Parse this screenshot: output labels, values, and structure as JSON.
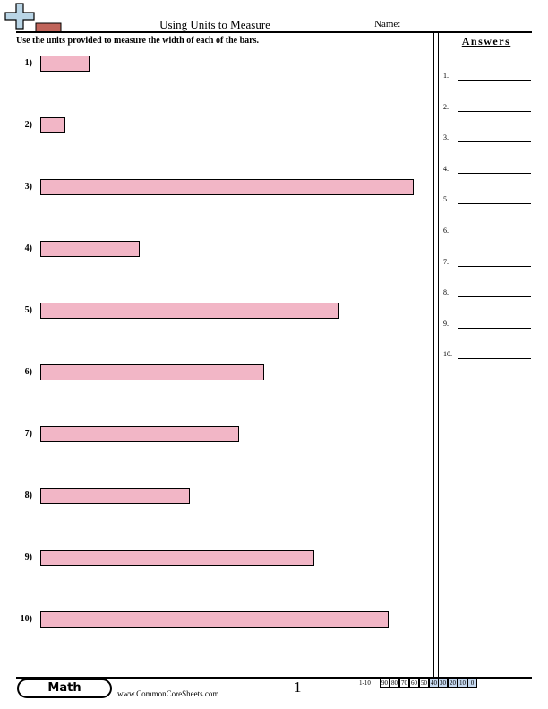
{
  "header": {
    "logo_icon": "plus-sign-logo-icon",
    "title": "Using Units to Measure",
    "name_label": "Name:",
    "instructions": "Use the units provided to measure the width of each of the bars."
  },
  "problems": [
    {
      "label": "1)",
      "bar_length_fraction": 0.133
    },
    {
      "label": "2)",
      "bar_length_fraction": 0.067
    },
    {
      "label": "3)",
      "bar_length_fraction": 1.0
    },
    {
      "label": "4)",
      "bar_length_fraction": 0.267
    },
    {
      "label": "5)",
      "bar_length_fraction": 0.8
    },
    {
      "label": "6)",
      "bar_length_fraction": 0.6
    },
    {
      "label": "7)",
      "bar_length_fraction": 0.533
    },
    {
      "label": "8)",
      "bar_length_fraction": 0.4
    },
    {
      "label": "9)",
      "bar_length_fraction": 0.733
    },
    {
      "label": "10)",
      "bar_length_fraction": 0.933
    }
  ],
  "answers": {
    "heading": "Answers",
    "items": [
      "1.",
      "2.",
      "3.",
      "4.",
      "5.",
      "6.",
      "7.",
      "8.",
      "9.",
      "10."
    ]
  },
  "footer": {
    "subject": "Math",
    "website": "www.CommonCoreSheets.com",
    "page_number": "1",
    "score_range": "1-10",
    "scores": [
      "90",
      "80",
      "70",
      "60",
      "50",
      "40",
      "30",
      "20",
      "10",
      "0"
    ]
  },
  "colors": {
    "bar_fill": "#f2b6c6",
    "score_highlight": "#c6d9f0",
    "logo_plus": "#b9d5e6",
    "logo_block": "#c0645a"
  }
}
